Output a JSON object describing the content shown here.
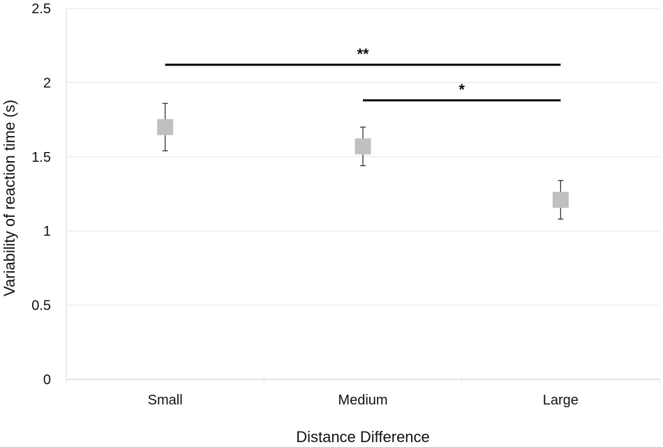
{
  "chart_data": {
    "type": "scatter",
    "title": "",
    "xlabel": "Distance Difference",
    "ylabel": "Variability of reaction time (s)",
    "categories": [
      "Small",
      "Medium",
      "Large"
    ],
    "series": [
      {
        "values": [
          1.7,
          1.57,
          1.21
        ],
        "error": [
          0.16,
          0.13,
          0.13
        ],
        "color": "#c0c0c0"
      }
    ],
    "ylim": [
      0,
      2.5
    ],
    "yticks": [
      0,
      0.5,
      1,
      1.5,
      2,
      2.5
    ],
    "ytick_labels": [
      "0",
      "0.5",
      "1",
      "1.5",
      "2",
      "2.5"
    ],
    "grid": true,
    "significance": [
      {
        "from": "Small",
        "to": "Large",
        "level": 2.12,
        "label": "**"
      },
      {
        "from": "Medium",
        "to": "Large",
        "level": 1.88,
        "label": "*"
      }
    ]
  }
}
